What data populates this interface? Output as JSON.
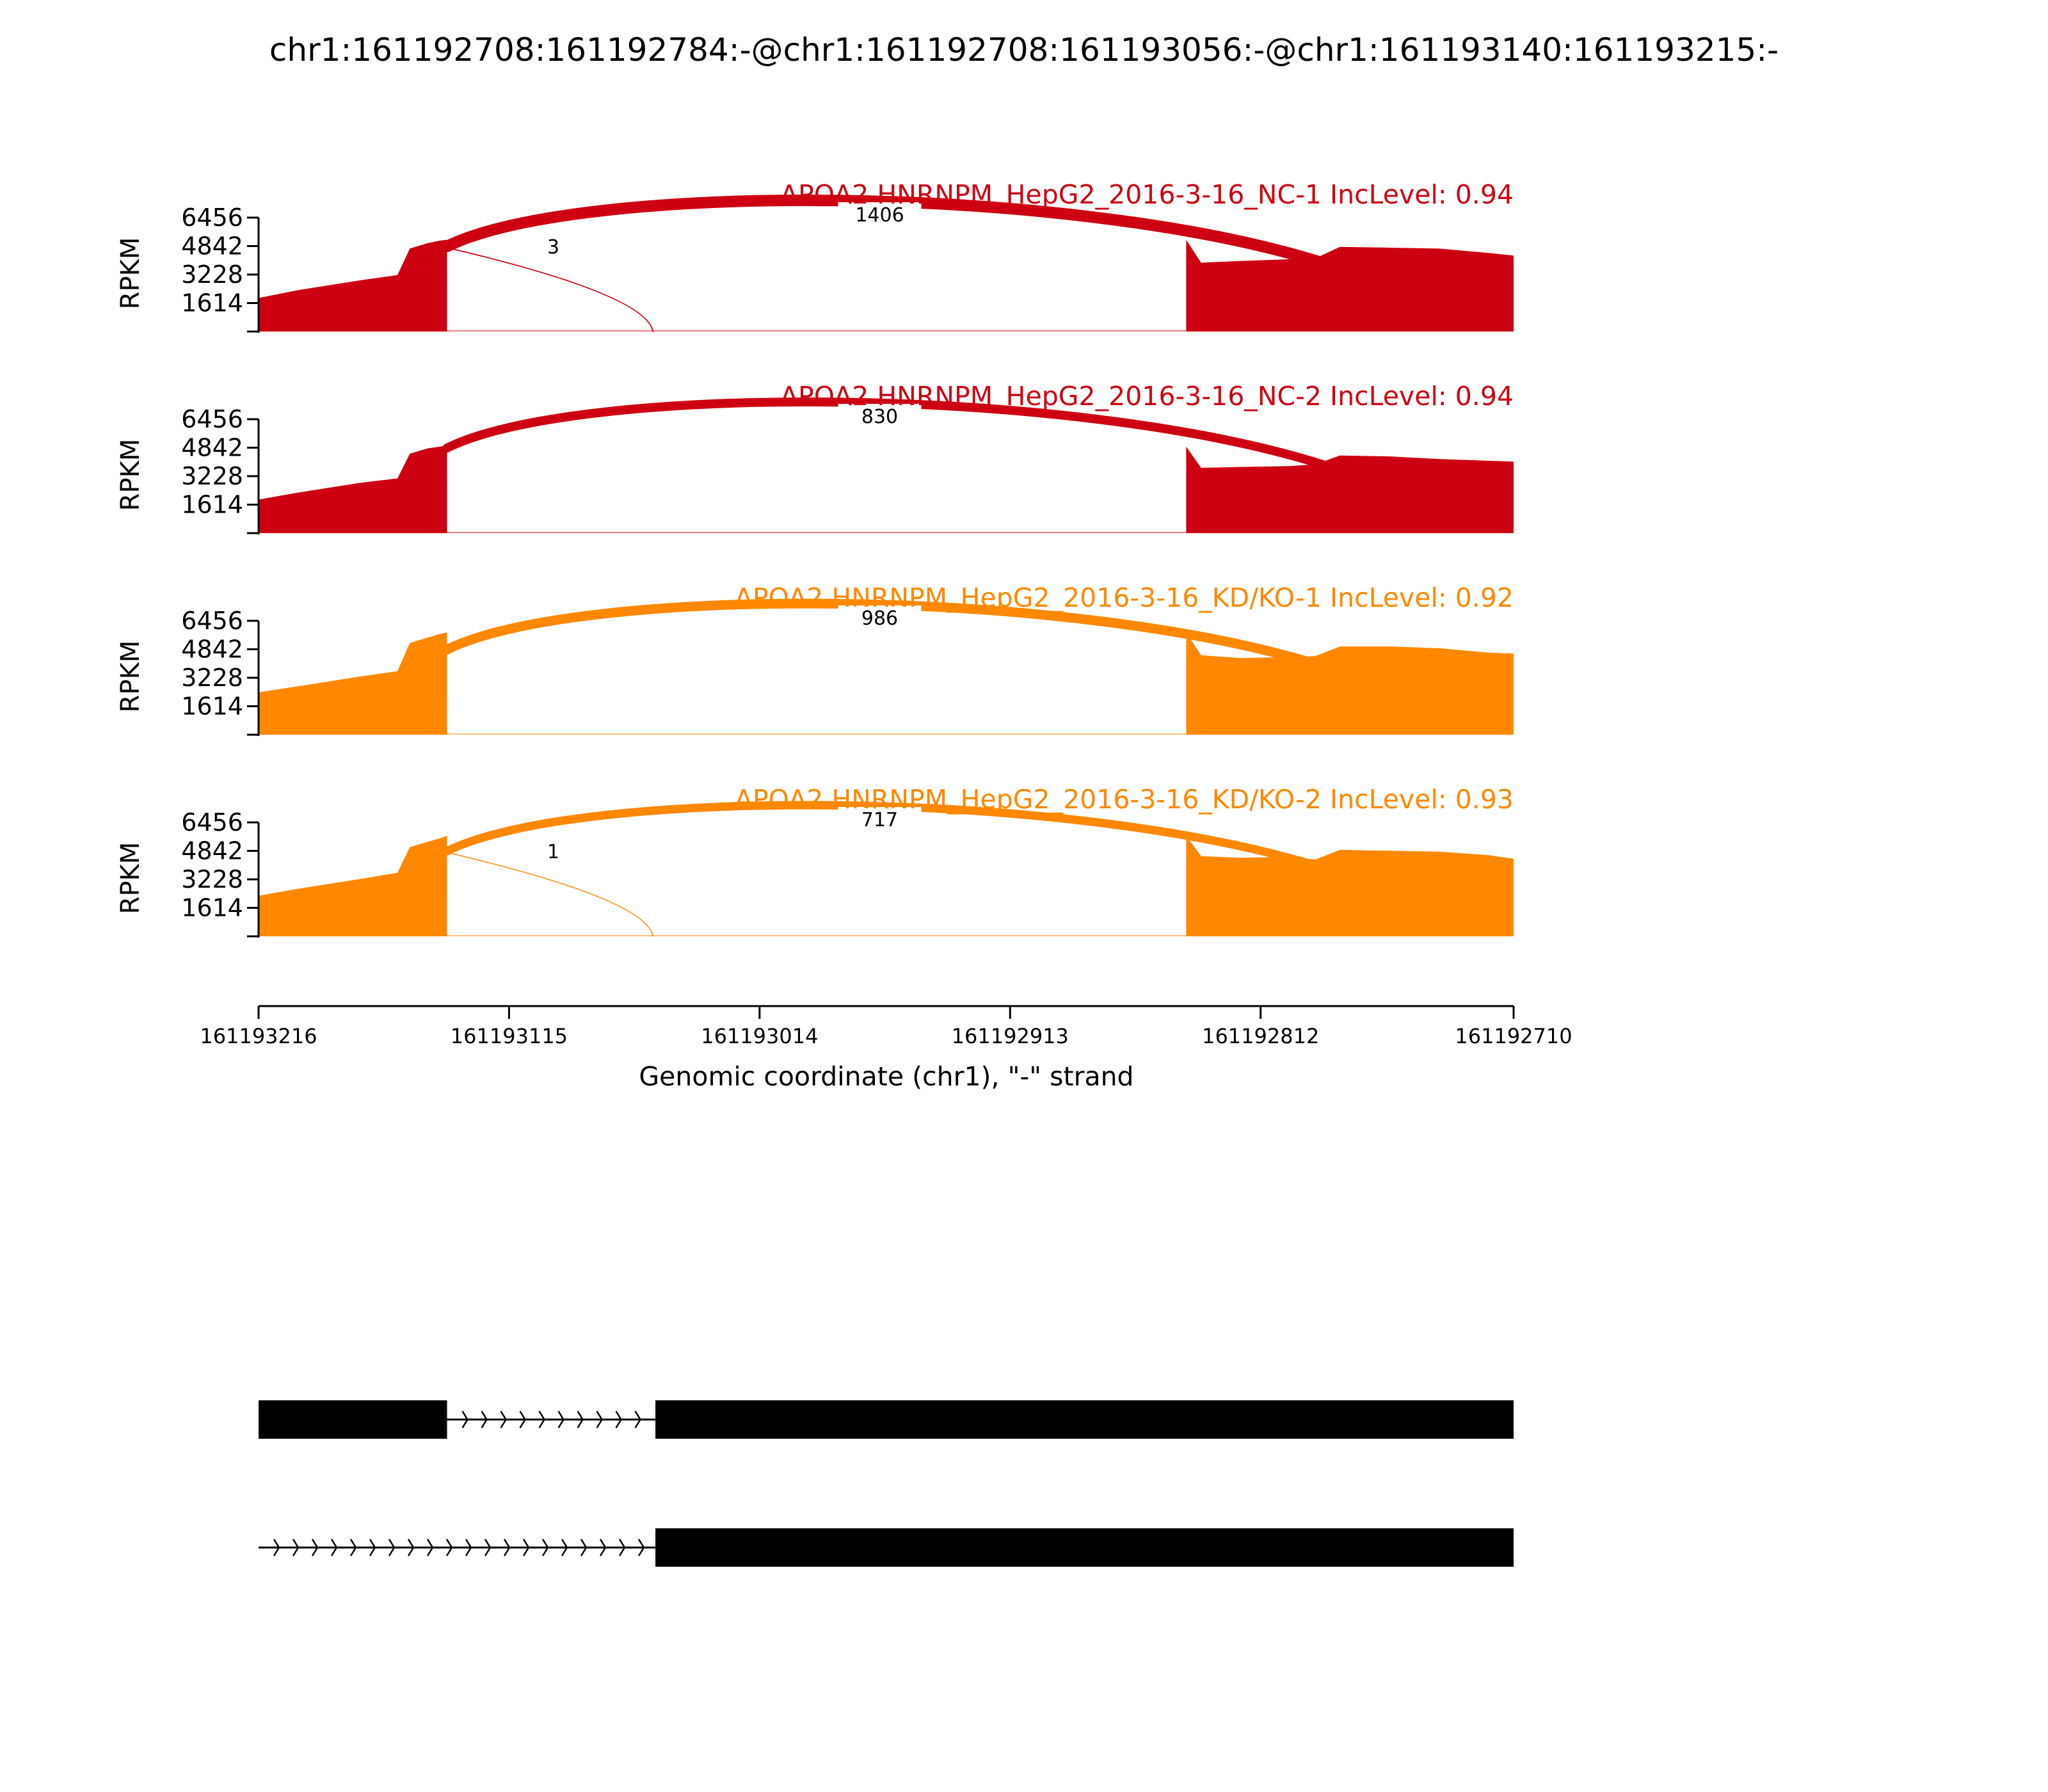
{
  "chart_data": {
    "type": "area",
    "title": "chr1:161192708:161192784:-@chr1:161192708:161193056:-@chr1:161193140:161193215:-",
    "xlabel": "Genomic coordinate (chr1), \"-\" strand",
    "ylabel": "RPKM",
    "x_reversed": true,
    "xlim": [
      161193216,
      161192710
    ],
    "xticks": [
      161193216,
      161193115,
      161193014,
      161192913,
      161192812,
      161192710
    ],
    "ylim": [
      0,
      6456
    ],
    "yticks": [
      1614,
      3228,
      4842,
      6456
    ],
    "grid": false,
    "samples": [
      {
        "label": "APOA2 HNRNPM_HepG2_2016-3-16_NC-1 IncLevel: 0.94",
        "color": "#cc0011",
        "exon1": {
          "x": [
            161193216,
            161193200,
            161193175,
            161193160,
            161193155,
            161193148,
            161193143,
            161193140
          ],
          "y": [
            1900,
            2350,
            2900,
            3200,
            4700,
            5000,
            5150,
            5200
          ]
        },
        "exon2": {
          "x": [
            161192842,
            161192836,
            161192820,
            161192800,
            161192790,
            161192780,
            161192760,
            161192740,
            161192720,
            161192710
          ],
          "y": [
            5200,
            3900,
            4000,
            4100,
            4150,
            4800,
            4750,
            4700,
            4450,
            4300
          ]
        },
        "junctions": [
          {
            "from": 161193140,
            "to": 161192786,
            "count": 1406
          },
          {
            "from": 161193140,
            "to": 161193057,
            "count": 3
          }
        ]
      },
      {
        "label": "APOA2 HNRNPM_HepG2_2016-3-16_NC-2 IncLevel: 0.94",
        "color": "#cc0011",
        "exon1": {
          "x": [
            161193216,
            161193200,
            161193175,
            161193160,
            161193155,
            161193148,
            161193143,
            161193140
          ],
          "y": [
            1900,
            2300,
            2850,
            3100,
            4500,
            4800,
            4900,
            4950
          ]
        },
        "exon2": {
          "x": [
            161192842,
            161192836,
            161192820,
            161192800,
            161192790,
            161192780,
            161192760,
            161192740,
            161192720,
            161192710
          ],
          "y": [
            4900,
            3700,
            3750,
            3800,
            3900,
            4400,
            4350,
            4200,
            4100,
            4050
          ]
        },
        "junctions": [
          {
            "from": 161193140,
            "to": 161192786,
            "count": 830
          }
        ]
      },
      {
        "label": "APOA2 HNRNPM_HepG2_2016-3-16_KD/KO-1 IncLevel: 0.92",
        "color": "#ff8800",
        "exon1": {
          "x": [
            161193216,
            161193200,
            161193175,
            161193160,
            161193155,
            161193148,
            161193143,
            161193140
          ],
          "y": [
            2400,
            2750,
            3300,
            3600,
            5200,
            5500,
            5700,
            5800
          ]
        },
        "exon2": {
          "x": [
            161192842,
            161192836,
            161192820,
            161192800,
            161192790,
            161192780,
            161192760,
            161192740,
            161192720,
            161192710
          ],
          "y": [
            5800,
            4500,
            4350,
            4400,
            4450,
            5000,
            5000,
            4900,
            4650,
            4600
          ]
        },
        "junctions": [
          {
            "from": 161193140,
            "to": 161192786,
            "count": 986
          }
        ]
      },
      {
        "label": "APOA2 HNRNPM_HepG2_2016-3-16_KD/KO-2 IncLevel: 0.93",
        "color": "#ff8800",
        "exon1": {
          "x": [
            161193216,
            161193200,
            161193175,
            161193160,
            161193155,
            161193148,
            161193143,
            161193140
          ],
          "y": [
            2300,
            2700,
            3250,
            3600,
            5050,
            5350,
            5550,
            5700
          ]
        },
        "exon2": {
          "x": [
            161192842,
            161192836,
            161192820,
            161192800,
            161192790,
            161192780,
            161192760,
            161192740,
            161192720,
            161192710
          ],
          "y": [
            5700,
            4550,
            4450,
            4500,
            4350,
            4900,
            4850,
            4800,
            4600,
            4400
          ]
        },
        "junctions": [
          {
            "from": 161193140,
            "to": 161192786,
            "count": 717
          },
          {
            "from": 161193140,
            "to": 161193057,
            "count": 1
          }
        ]
      }
    ],
    "isoforms": [
      {
        "exons": [
          [
            161193216,
            161193140
          ],
          [
            161193056,
            161192710
          ]
        ],
        "strand": "-"
      },
      {
        "exons": [
          [
            161193056,
            161192710
          ]
        ],
        "intron_from": 161193216,
        "strand": "-"
      }
    ]
  }
}
